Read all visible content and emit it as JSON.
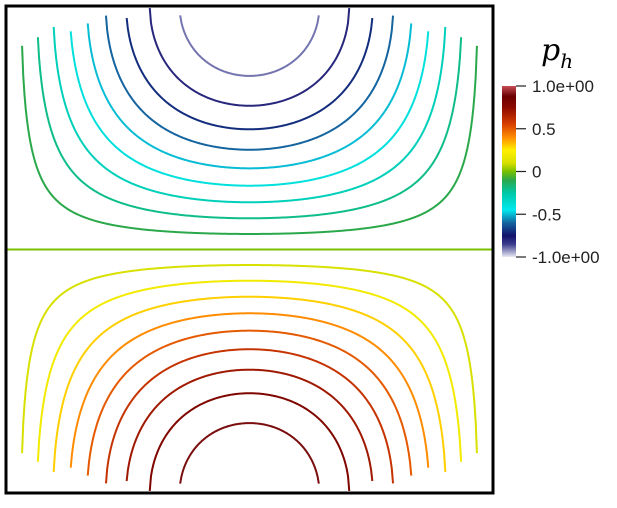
{
  "figure": {
    "field": "p_h",
    "colorbar": {
      "title_main": "p",
      "title_sub": "h",
      "range": [
        -1.0,
        1.0
      ],
      "ticks": [
        {
          "value": 1.0,
          "label": "1.0e+00"
        },
        {
          "value": 0.5,
          "label": "0.5"
        },
        {
          "value": 0.0,
          "label": "0"
        },
        {
          "value": -0.5,
          "label": "-0.5"
        },
        {
          "value": -1.0,
          "label": "-1.0e+00"
        }
      ],
      "stops": [
        {
          "value": -1.0,
          "color": "#e8e8f4"
        },
        {
          "value": -0.85,
          "color": "#3a3c8c"
        },
        {
          "value": -0.75,
          "color": "#13126b"
        },
        {
          "value": -0.6,
          "color": "#1464a0"
        },
        {
          "value": -0.45,
          "color": "#00e8ee"
        },
        {
          "value": -0.25,
          "color": "#00c8a8"
        },
        {
          "value": -0.1,
          "color": "#2aa84a"
        },
        {
          "value": 0.0,
          "color": "#78c000"
        },
        {
          "value": 0.1,
          "color": "#d8e000"
        },
        {
          "value": 0.25,
          "color": "#fff000"
        },
        {
          "value": 0.4,
          "color": "#ff8c00"
        },
        {
          "value": 0.55,
          "color": "#d84000"
        },
        {
          "value": 0.75,
          "color": "#8c0a00"
        },
        {
          "value": 0.88,
          "color": "#6a0000"
        },
        {
          "value": 1.0,
          "color": "#c84c54"
        }
      ]
    },
    "contour_levels": [
      -0.9,
      -0.8,
      -0.7,
      -0.6,
      -0.5,
      -0.4,
      -0.3,
      -0.2,
      -0.1,
      0.0,
      0.1,
      0.2,
      0.3,
      0.4,
      0.5,
      0.6,
      0.7,
      0.8,
      0.9
    ],
    "domain_frame_color": "#000000"
  }
}
